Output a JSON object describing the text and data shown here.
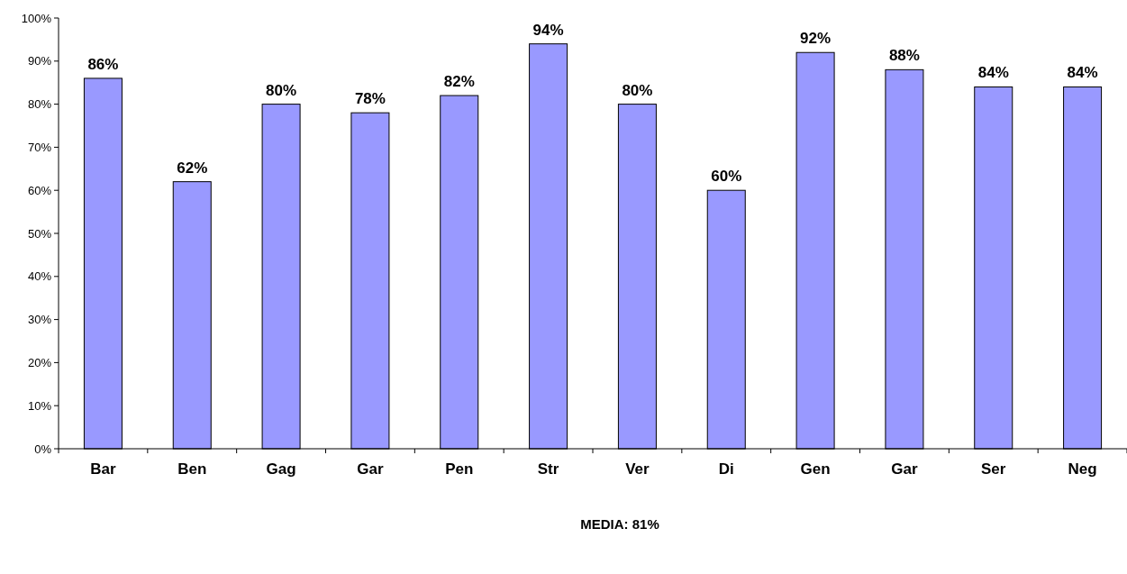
{
  "chart_data": {
    "type": "bar",
    "categories": [
      "Bar",
      "Ben",
      "Gag",
      "Gar",
      "Pen",
      "Str",
      "Ver",
      "Di",
      "Gen",
      "Gar",
      "Ser",
      "Neg"
    ],
    "values": [
      86,
      62,
      80,
      78,
      82,
      94,
      80,
      60,
      92,
      88,
      84,
      84
    ],
    "value_labels": [
      "86%",
      "62%",
      "80%",
      "78%",
      "82%",
      "94%",
      "80%",
      "60%",
      "92%",
      "88%",
      "84%",
      "84%"
    ],
    "color": "#9999ff",
    "xlabel": "MEDIA: 81%",
    "ylim": [
      0,
      100
    ],
    "yticks": [
      {
        "value": 0,
        "label": "0%"
      },
      {
        "value": 10,
        "label": "10%"
      },
      {
        "value": 20,
        "label": "20%"
      },
      {
        "value": 30,
        "label": "30%"
      },
      {
        "value": 40,
        "label": "40%"
      },
      {
        "value": 50,
        "label": "50%"
      },
      {
        "value": 60,
        "label": "60%"
      },
      {
        "value": 70,
        "label": "70%"
      },
      {
        "value": 80,
        "label": "80%"
      },
      {
        "value": 90,
        "label": "90%"
      },
      {
        "value": 100,
        "label": "100%"
      }
    ],
    "grid": false
  }
}
